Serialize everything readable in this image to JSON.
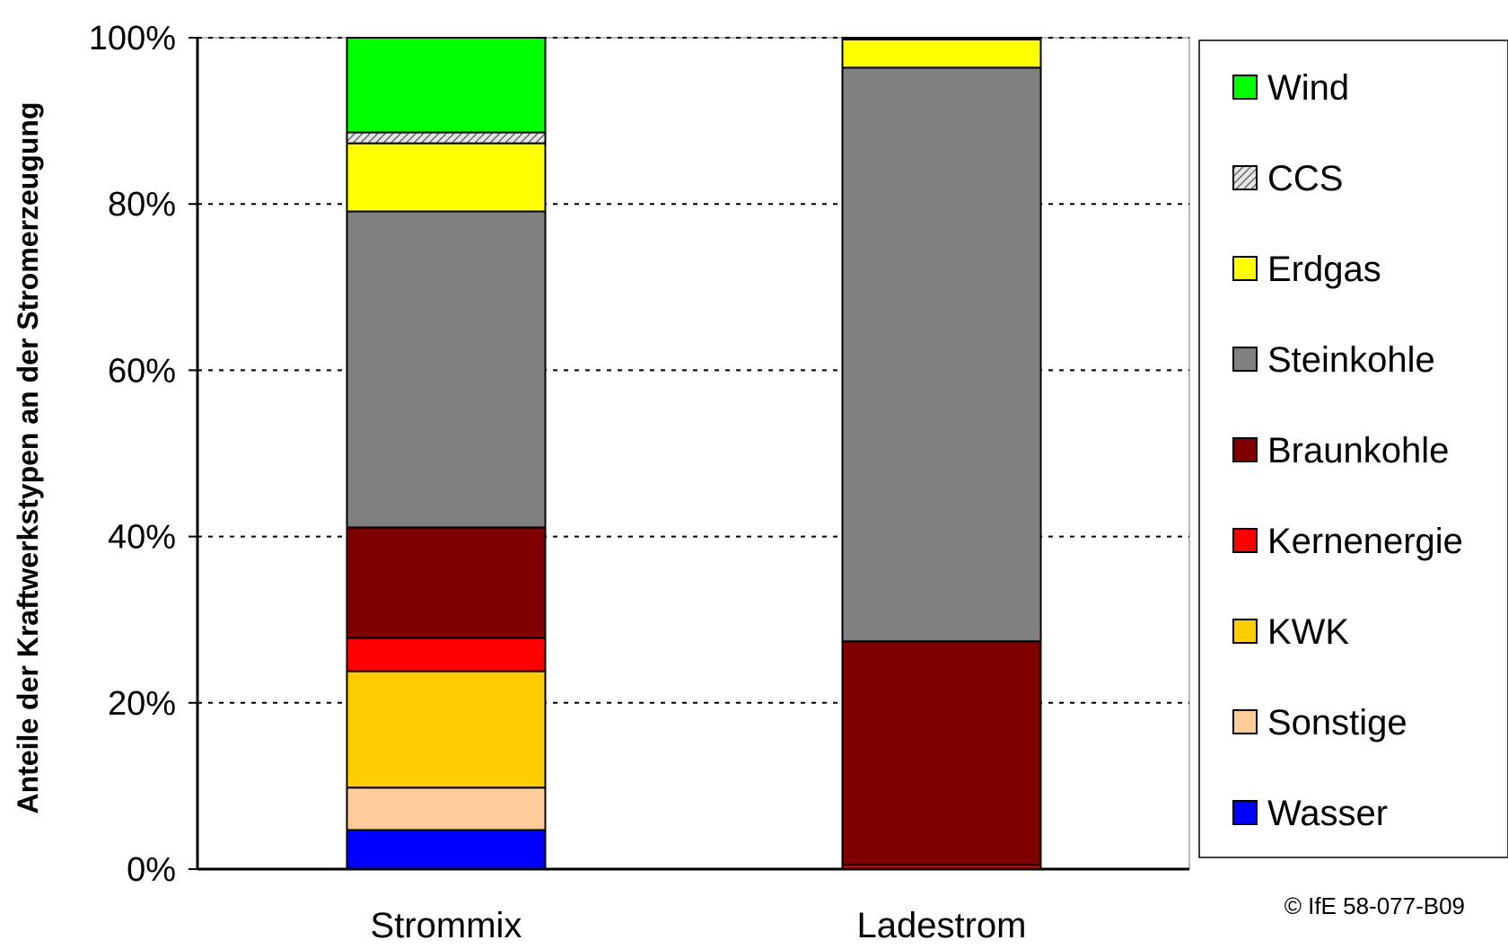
{
  "chart_data": {
    "type": "bar",
    "stacked": true,
    "categories": [
      "Strommix",
      "Ladestrom"
    ],
    "ylabel": "Anteile der Kraftwerkstypen an der Stromerzeugung",
    "ylim": [
      0,
      100
    ],
    "yticks": [
      "0%",
      "20%",
      "40%",
      "60%",
      "80%",
      "100%"
    ],
    "grid": true,
    "legend_position": "right",
    "series": [
      {
        "name": "Wasser",
        "color": "#0000FF",
        "pattern": "solid",
        "values": [
          4.7,
          0.0
        ]
      },
      {
        "name": "Sonstige",
        "color": "#FFCC99",
        "pattern": "solid",
        "values": [
          5.1,
          0.0
        ]
      },
      {
        "name": "KWK",
        "color": "#FFCC00",
        "pattern": "solid",
        "values": [
          14.0,
          0.0
        ]
      },
      {
        "name": "Kernenergie",
        "color": "#FF0000",
        "pattern": "solid",
        "values": [
          4.0,
          0.5
        ]
      },
      {
        "name": "Braunkohle",
        "color": "#800000",
        "pattern": "solid",
        "values": [
          13.3,
          26.9
        ]
      },
      {
        "name": "Steinkohle",
        "color": "#808080",
        "pattern": "solid",
        "values": [
          38.0,
          69.0
        ]
      },
      {
        "name": "Erdgas",
        "color": "#FFFF00",
        "pattern": "solid",
        "values": [
          8.2,
          3.4
        ]
      },
      {
        "name": "CCS",
        "color": "#C0C0C0",
        "pattern": "hatched",
        "values": [
          1.3,
          0.0
        ]
      },
      {
        "name": "Wind",
        "color": "#00FF00",
        "pattern": "solid",
        "values": [
          11.4,
          0.2
        ]
      }
    ],
    "legend_order": [
      "Wind",
      "CCS",
      "Erdgas",
      "Steinkohle",
      "Braunkohle",
      "Kernenergie",
      "KWK",
      "Sonstige",
      "Wasser"
    ]
  },
  "copyright": "© IfE 58-077-B09"
}
